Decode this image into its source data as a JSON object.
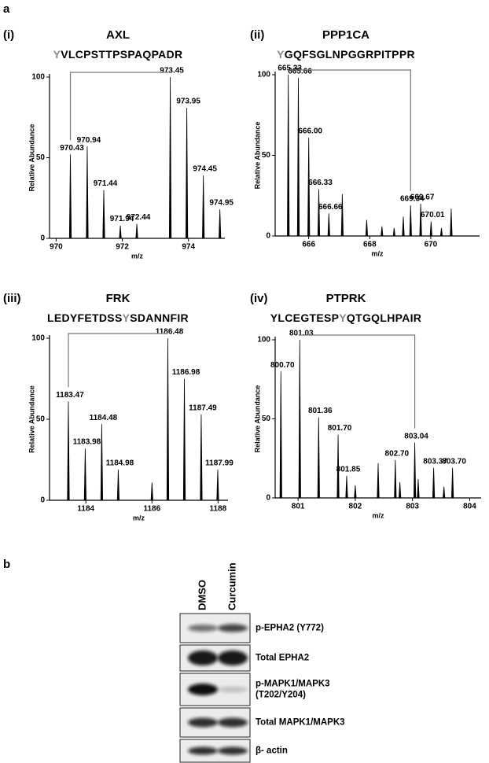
{
  "figure": {
    "panel_a": "a",
    "panel_b": "b"
  },
  "chart_data": [
    {
      "type": "bar",
      "panel": "(i)",
      "title": "AXL",
      "subtitle": "YVLCPSTTPSPAQPADR",
      "xlabel": "m/z",
      "ylabel": "Relative Abundance",
      "color": "#000000",
      "x": [
        970.43,
        970.94,
        971.44,
        971.94,
        972.44,
        973.45,
        973.95,
        974.45,
        974.95
      ],
      "values": [
        52,
        57,
        30,
        8,
        9,
        100,
        81,
        39,
        18
      ],
      "peak_labels": [
        "970.43",
        "970.94",
        "971.44",
        "971.94",
        "972.44",
        "973.45",
        "973.95",
        "974.45",
        "974.95"
      ],
      "xlim": [
        969.8,
        975.1
      ],
      "ylim": [
        0,
        100
      ],
      "xticks": [
        970,
        972,
        974
      ],
      "yticks": [
        0,
        50,
        100
      ]
    },
    {
      "type": "bar",
      "panel": "(ii)",
      "title": "PPP1CA",
      "subtitle": "YGQFSGLNPGGRPITPPR",
      "xlabel": "m/z",
      "ylabel": "Relative Abundance",
      "color": "#000000",
      "x": [
        665.33,
        665.66,
        666.0,
        666.33,
        666.66,
        667.1,
        667.9,
        668.4,
        668.8,
        669.1,
        669.34,
        669.67,
        670.01,
        670.35,
        670.67
      ],
      "values": [
        100,
        98,
        61,
        29,
        14,
        26,
        10,
        6,
        5,
        12,
        19,
        20,
        9,
        5,
        17
      ],
      "peak_labels": [
        "665.33",
        "665.66",
        "666.00",
        "666.33",
        "666.66",
        null,
        null,
        null,
        null,
        null,
        "669.34",
        "669.67",
        "670.01",
        null,
        null
      ],
      "xlim": [
        664.9,
        671.6
      ],
      "ylim": [
        0,
        100
      ],
      "xticks": [
        666,
        668,
        670
      ],
      "yticks": [
        0,
        50,
        100
      ]
    },
    {
      "type": "bar",
      "panel": "(iii)",
      "title": "FRK",
      "subtitle": "LEDYFETDSSYSDANNFIR",
      "xlabel": "m/z",
      "ylabel": "Relative Abundance",
      "color": "#000000",
      "x": [
        1183.47,
        1183.98,
        1184.48,
        1184.98,
        1186.0,
        1186.48,
        1186.98,
        1187.49,
        1187.99
      ],
      "values": [
        61,
        32,
        47,
        19,
        11,
        100,
        75,
        53,
        19
      ],
      "peak_labels": [
        "1183.47",
        "1183.98",
        "1184.48",
        "1184.98",
        null,
        "1186.48",
        "1186.98",
        "1187.49",
        "1187.99"
      ],
      "xlim": [
        1182.9,
        1188.3
      ],
      "ylim": [
        0,
        100
      ],
      "xticks": [
        1184,
        1186,
        1188
      ],
      "yticks": [
        0,
        50,
        100
      ]
    },
    {
      "type": "bar",
      "panel": "(iv)",
      "title": "PTPRK",
      "subtitle": "YLCEGTESPYQTGQLHPAIR",
      "xlabel": "m/z",
      "ylabel": "Relative Abundance",
      "color": "#000000",
      "x": [
        800.7,
        801.03,
        801.36,
        801.7,
        801.85,
        802.0,
        802.4,
        802.7,
        802.78,
        803.04,
        803.1,
        803.37,
        803.55,
        803.7
      ],
      "values": [
        80,
        100,
        51,
        40,
        14,
        8,
        22,
        24,
        10,
        35,
        12,
        19,
        7,
        19
      ],
      "peak_labels": [
        "800.70",
        "801.03",
        "801.36",
        "801.70",
        "801.85",
        null,
        null,
        "802.70",
        null,
        "803.04",
        null,
        "803.37",
        null,
        "803.70"
      ],
      "xlim": [
        800.6,
        804.2
      ],
      "ylim": [
        0,
        100
      ],
      "xticks": [
        801,
        802,
        803,
        804
      ],
      "yticks": [
        0,
        50,
        100
      ]
    }
  ],
  "blot": {
    "columns": [
      "DMSO",
      "Curcumin"
    ],
    "rows": [
      [
        "p-EPHA2 (Y772)"
      ],
      [
        "Total EPHA2"
      ],
      [
        "p-MAPK1/MAPK3",
        "(T202/Y204)"
      ],
      [
        "Total MAPK1/MAPK3"
      ],
      [
        "β- actin"
      ]
    ]
  }
}
